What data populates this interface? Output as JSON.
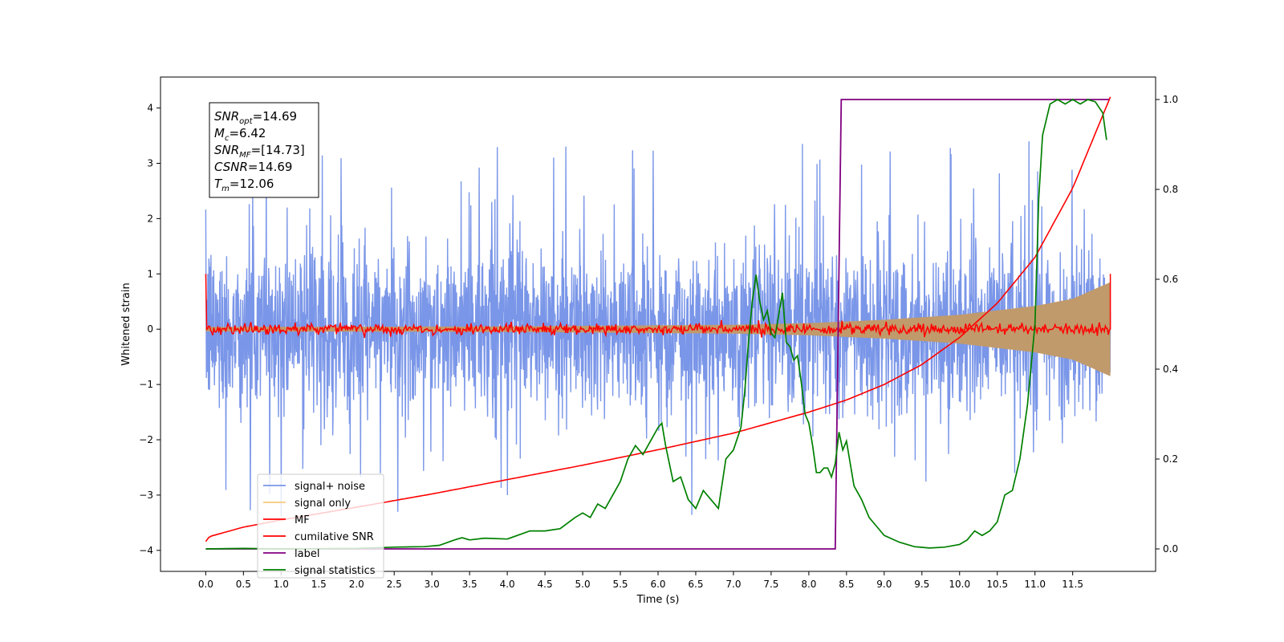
{
  "chart_data": {
    "type": "line",
    "title": "",
    "xlabel": "Time (s)",
    "ylabel": "Whitened strain",
    "ylabel_right": "",
    "xlim": [
      -0.6,
      12.6
    ],
    "ylim": [
      -4.38,
      4.56
    ],
    "ylim_right": [
      -0.05,
      1.05
    ],
    "x_ticks": [
      0.0,
      0.5,
      1.0,
      1.5,
      2.0,
      2.5,
      3.0,
      3.5,
      4.0,
      4.5,
      5.0,
      5.5,
      6.0,
      6.5,
      7.0,
      7.5,
      8.0,
      8.5,
      9.0,
      9.5,
      10.0,
      10.5,
      11.0,
      11.5
    ],
    "x_tick_labels": [
      "0.0",
      "0.5",
      "1.0",
      "1.5",
      "2.0",
      "2.5",
      "3.0",
      "3.5",
      "4.0",
      "4.5",
      "5.0",
      "5.5",
      "6.0",
      "6.5",
      "7.0",
      "7.5",
      "8.0",
      "8.5",
      "9.0",
      "9.5",
      "10.0",
      "10.5",
      "11.0",
      "11.5"
    ],
    "y_ticks": [
      -4,
      -3,
      -2,
      -1,
      0,
      1,
      2,
      3,
      4
    ],
    "y_tick_labels": [
      "−4",
      "−3",
      "−2",
      "−1",
      "0",
      "1",
      "2",
      "3",
      "4"
    ],
    "y_right_ticks": [
      0.0,
      0.2,
      0.4,
      0.6,
      0.8,
      1.0
    ],
    "y_right_tick_labels": [
      "0.0",
      "0.2",
      "0.4",
      "0.6",
      "0.8",
      "1.0"
    ],
    "annotation": {
      "lines": [
        {
          "base": "SNR",
          "sub": "opt",
          "value": "=14.69"
        },
        {
          "base": "M",
          "sub": "c",
          "value": "=6.42"
        },
        {
          "base": "SNR",
          "sub": "MF",
          "value": "=[14.73]"
        },
        {
          "base": "CSNR",
          "sub": "",
          "value": "=14.69"
        },
        {
          "base": "T",
          "sub": "m",
          "value": "=12.06"
        }
      ]
    },
    "legend": {
      "placement": "lower-left",
      "entries": [
        {
          "label": "signal+ noise",
          "color": "#7a96e8"
        },
        {
          "label": "signal only",
          "color": "#f5c97a"
        },
        {
          "label": "MF",
          "color": "#ff0000"
        },
        {
          "label": "cumilative SNR",
          "color": "#ff0000"
        },
        {
          "label": "label",
          "color": "#800080"
        },
        {
          "label": "signal statistics",
          "color": "#008000"
        }
      ]
    },
    "series": [
      {
        "name": "signal+ noise",
        "axis": "left",
        "color": "#7a96e8",
        "style": "noise",
        "x_range": [
          0.0,
          12.0
        ],
        "band": [
          -1.6,
          1.6
        ],
        "peaks": [
          -3.0,
          3.6
        ]
      },
      {
        "name": "signal only",
        "axis": "left",
        "color": "#c19a6b",
        "style": "chirp-envelope",
        "x_range": [
          0.0,
          12.0
        ],
        "envelope": {
          "x": [
            0,
            4,
            7,
            8,
            9,
            10,
            11,
            11.5,
            12.0
          ],
          "amp": [
            0.04,
            0.05,
            0.08,
            0.11,
            0.17,
            0.26,
            0.42,
            0.55,
            0.85
          ]
        }
      },
      {
        "name": "MF",
        "axis": "left",
        "color": "#ff0000",
        "style": "noise-small",
        "x_range": [
          0.0,
          12.0
        ],
        "amplitude": 0.1,
        "endpoints": [
          1.0,
          1.0
        ]
      },
      {
        "name": "cumilative SNR",
        "axis": "left",
        "color": "#ff0000",
        "x": [
          0.0,
          0.05,
          0.5,
          1.0,
          2.0,
          3.0,
          4.0,
          5.0,
          6.0,
          7.0,
          8.0,
          8.5,
          9.0,
          9.5,
          10.0,
          10.5,
          11.0,
          11.5,
          12.0
        ],
        "y": [
          -3.84,
          -3.75,
          -3.58,
          -3.45,
          -3.22,
          -2.98,
          -2.72,
          -2.46,
          -2.18,
          -1.88,
          -1.5,
          -1.28,
          -1.0,
          -0.64,
          -0.15,
          0.47,
          1.3,
          2.55,
          4.2
        ]
      },
      {
        "name": "label",
        "axis": "right",
        "color": "#800080",
        "x": [
          0.0,
          8.35,
          8.43,
          11.98
        ],
        "y": [
          0.0,
          0.0,
          1.0,
          1.0
        ]
      },
      {
        "name": "signal statistics",
        "axis": "right",
        "color": "#008000",
        "x": [
          0.0,
          0.5,
          1.0,
          2.0,
          2.5,
          2.9,
          3.1,
          3.3,
          3.4,
          3.5,
          3.7,
          4.0,
          4.3,
          4.5,
          4.7,
          4.9,
          5.0,
          5.1,
          5.2,
          5.3,
          5.4,
          5.5,
          5.6,
          5.7,
          5.8,
          5.9,
          6.0,
          6.05,
          6.1,
          6.2,
          6.3,
          6.4,
          6.5,
          6.6,
          6.7,
          6.8,
          6.9,
          7.0,
          7.1,
          7.15,
          7.2,
          7.25,
          7.3,
          7.35,
          7.4,
          7.45,
          7.5,
          7.55,
          7.6,
          7.65,
          7.7,
          7.75,
          7.8,
          7.85,
          7.9,
          7.95,
          8.0,
          8.05,
          8.1,
          8.15,
          8.2,
          8.25,
          8.3,
          8.35,
          8.4,
          8.45,
          8.5,
          8.55,
          8.6,
          8.7,
          8.8,
          8.9,
          9.0,
          9.2,
          9.4,
          9.6,
          9.8,
          10.0,
          10.1,
          10.2,
          10.3,
          10.4,
          10.5,
          10.6,
          10.7,
          10.8,
          10.9,
          11.0,
          11.05,
          11.1,
          11.2,
          11.3,
          11.4,
          11.5,
          11.6,
          11.7,
          11.8,
          11.9,
          11.95
        ],
        "y": [
          0.0,
          0.001,
          0.0,
          0.001,
          0.004,
          0.005,
          0.008,
          0.02,
          0.025,
          0.02,
          0.024,
          0.022,
          0.04,
          0.04,
          0.045,
          0.07,
          0.08,
          0.07,
          0.1,
          0.09,
          0.12,
          0.15,
          0.2,
          0.23,
          0.21,
          0.24,
          0.27,
          0.28,
          0.23,
          0.15,
          0.16,
          0.11,
          0.09,
          0.13,
          0.11,
          0.09,
          0.2,
          0.22,
          0.27,
          0.35,
          0.46,
          0.55,
          0.61,
          0.55,
          0.51,
          0.53,
          0.48,
          0.47,
          0.52,
          0.57,
          0.46,
          0.45,
          0.42,
          0.43,
          0.37,
          0.3,
          0.28,
          0.23,
          0.17,
          0.17,
          0.18,
          0.18,
          0.16,
          0.19,
          0.26,
          0.22,
          0.24,
          0.19,
          0.14,
          0.11,
          0.07,
          0.05,
          0.03,
          0.015,
          0.005,
          0.002,
          0.004,
          0.01,
          0.02,
          0.04,
          0.03,
          0.04,
          0.06,
          0.12,
          0.13,
          0.2,
          0.32,
          0.5,
          0.78,
          0.92,
          0.99,
          1.0,
          0.99,
          1.0,
          0.99,
          1.0,
          0.995,
          0.97,
          0.91
        ]
      }
    ]
  }
}
